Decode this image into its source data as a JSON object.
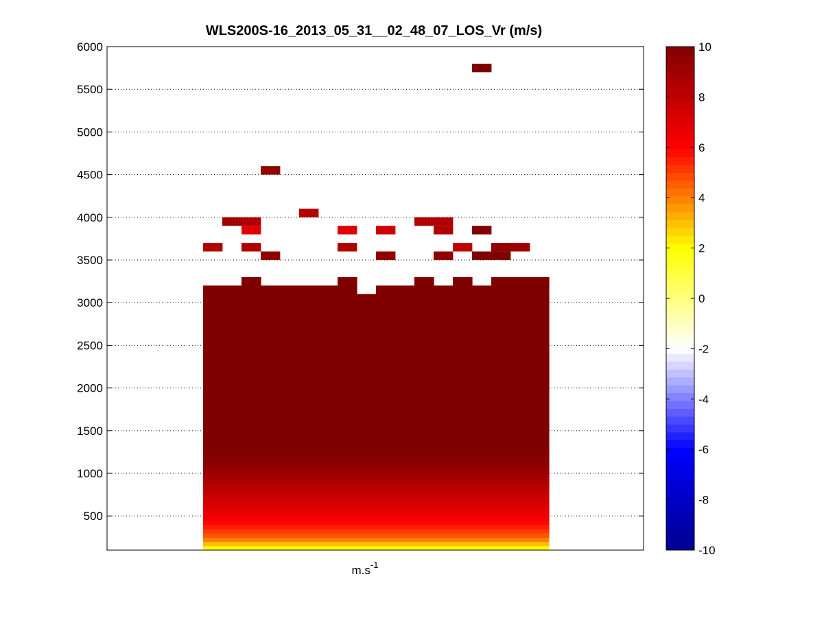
{
  "chart_data": {
    "type": "heatmap",
    "title": "WLS200S-16_2013_05_31__02_48_07_LOS_Vr (m/s)",
    "xlabel": "m.s",
    "xlabel_superscript": "-1",
    "ylabel": "",
    "ylim": [
      100,
      6000
    ],
    "yticks": [
      500,
      1000,
      1500,
      2000,
      2500,
      3000,
      3500,
      4000,
      4500,
      5000,
      5500,
      6000
    ],
    "grid": "horizontal-dotted",
    "colorbar": {
      "range": [
        -10,
        10
      ],
      "ticks": [
        -10,
        -8,
        -6,
        -4,
        -2,
        0,
        2,
        4,
        6,
        8,
        10
      ],
      "colors": [
        "#00008f",
        "#0000ff",
        "#ffffff",
        "#ffff00",
        "#ff0000",
        "#800000"
      ]
    },
    "columns": {
      "count": 18,
      "main_block_tops_m": [
        3200,
        3200,
        3300,
        3200,
        3200,
        3200,
        3200,
        3300,
        3100,
        3200,
        3200,
        3300,
        3200,
        3300,
        3200,
        3300,
        3300,
        3300
      ],
      "value_profile": [
        {
          "height_m": 100,
          "value_ms": 1.5
        },
        {
          "height_m": 250,
          "value_ms": 4.5
        },
        {
          "height_m": 500,
          "value_ms": 6.5
        },
        {
          "height_m": 800,
          "value_ms": 8.0
        },
        {
          "height_m": 1100,
          "value_ms": 9.6
        },
        {
          "height_m": 1300,
          "value_ms": 10
        }
      ],
      "isolated_cells": [
        {
          "col": 0,
          "height_m": 3650,
          "value_ms": 8.5
        },
        {
          "col": 1,
          "height_m": 3950,
          "value_ms": 9
        },
        {
          "col": 2,
          "height_m": 3950,
          "value_ms": 8.5
        },
        {
          "col": 2,
          "height_m": 3850,
          "value_ms": 7
        },
        {
          "col": 2,
          "height_m": 3650,
          "value_ms": 8.5
        },
        {
          "col": 3,
          "height_m": 3550,
          "value_ms": 9.5
        },
        {
          "col": 3,
          "height_m": 4550,
          "value_ms": 9.5
        },
        {
          "col": 5,
          "height_m": 4050,
          "value_ms": 8.5
        },
        {
          "col": 7,
          "height_m": 3850,
          "value_ms": 7
        },
        {
          "col": 7,
          "height_m": 3650,
          "value_ms": 8.5
        },
        {
          "col": 9,
          "height_m": 3850,
          "value_ms": 7.5
        },
        {
          "col": 9,
          "height_m": 3550,
          "value_ms": 9.5
        },
        {
          "col": 11,
          "height_m": 3950,
          "value_ms": 8.5
        },
        {
          "col": 12,
          "height_m": 3950,
          "value_ms": 8.5
        },
        {
          "col": 12,
          "height_m": 3850,
          "value_ms": 8.5
        },
        {
          "col": 12,
          "height_m": 3550,
          "value_ms": 9.5
        },
        {
          "col": 13,
          "height_m": 3650,
          "value_ms": 8
        },
        {
          "col": 14,
          "height_m": 3850,
          "value_ms": 10
        },
        {
          "col": 14,
          "height_m": 3550,
          "value_ms": 10
        },
        {
          "col": 14,
          "height_m": 5750,
          "value_ms": 10
        },
        {
          "col": 15,
          "height_m": 3650,
          "value_ms": 9.5
        },
        {
          "col": 15,
          "height_m": 3550,
          "value_ms": 10
        },
        {
          "col": 16,
          "height_m": 3650,
          "value_ms": 9
        }
      ]
    }
  }
}
